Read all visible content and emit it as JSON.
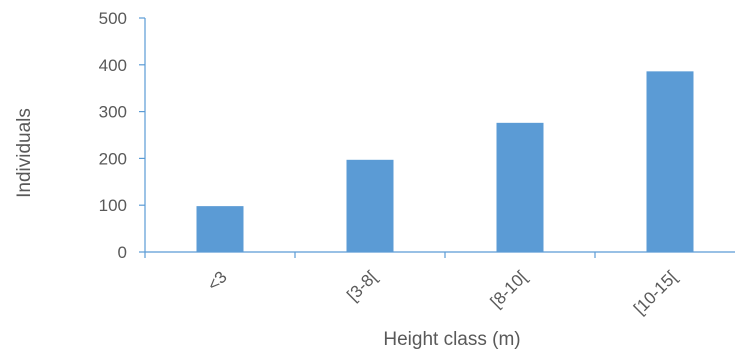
{
  "chart_data": {
    "type": "bar",
    "categories": [
      "<3",
      "[3-8[",
      "[8-10[",
      "[10-15["
    ],
    "values": [
      98,
      197,
      276,
      386
    ],
    "xlabel": "Height class (m)",
    "ylabel": "Individuals",
    "ylim": [
      0,
      500
    ],
    "yticks": [
      "0",
      "100",
      "200",
      "300",
      "400",
      "500"
    ],
    "grid": false,
    "legend": "none",
    "bar_color": "#5b9bd5",
    "axis_color": "#5b9bd5",
    "text_color": "#595959"
  }
}
